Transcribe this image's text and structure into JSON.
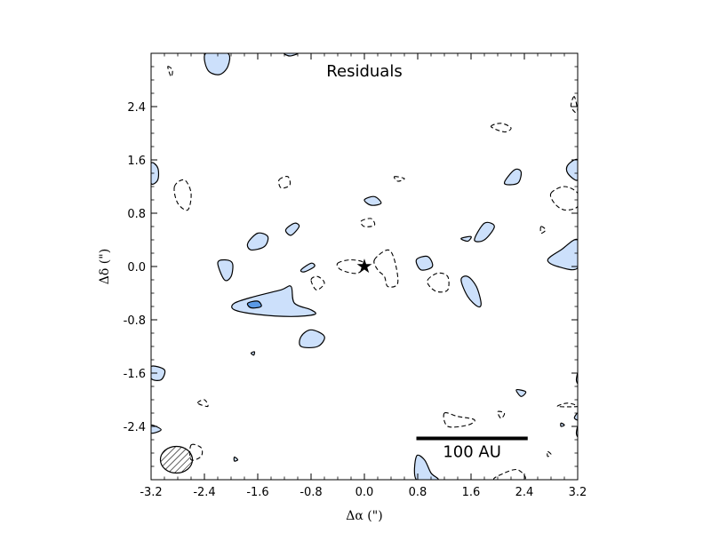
{
  "chart_data": {
    "type": "contour",
    "title": "Residuals",
    "xlabel": "Δα (\")",
    "ylabel": "Δδ (\")",
    "xlim": [
      -3.2,
      3.2
    ],
    "ylim": [
      -3.2,
      3.2
    ],
    "x_reversed": false,
    "xticks": [
      -3.2,
      -2.4,
      -1.6,
      -0.8,
      0.0,
      0.8,
      1.6,
      2.4,
      3.2
    ],
    "xtick_labels": [
      "-3.2",
      "-2.4",
      "-1.6",
      "-0.8",
      "0.0",
      "0.8",
      "1.6",
      "2.4",
      "3.2"
    ],
    "yticks": [
      -2.4,
      -1.6,
      -0.8,
      0.0,
      0.8,
      1.6,
      2.4
    ],
    "ytick_labels": [
      "-2.4",
      "-1.6",
      "-0.8",
      "0.0",
      "0.8",
      "1.6",
      "2.4"
    ],
    "colors": {
      "positive_fill": "#cce0fb",
      "strong_fill": "#5b9ae6",
      "line": "#000000"
    },
    "star": {
      "x": 0.0,
      "y": 0.0,
      "label": "★"
    },
    "scale_bar": {
      "x_start": 0.78,
      "x_end": 2.45,
      "y": -2.58,
      "label": "100 AU"
    },
    "beam": {
      "x": -2.82,
      "y": -2.9,
      "rx": 0.24,
      "ry": 0.2,
      "hatched": true
    },
    "positive_contours": [
      {
        "name": "pos-blob-1",
        "points": [
          [
            -2.38,
            3.2
          ],
          [
            -2.35,
            2.95
          ],
          [
            -2.18,
            2.88
          ],
          [
            -2.05,
            3.0
          ],
          [
            -2.05,
            3.2
          ]
        ]
      },
      {
        "name": "pos-blob-2",
        "points": [
          [
            -1.2,
            3.2
          ],
          [
            -1.12,
            3.16
          ],
          [
            -1.0,
            3.2
          ]
        ]
      },
      {
        "name": "pos-blob-3",
        "points": [
          [
            -3.2,
            1.55
          ],
          [
            -3.1,
            1.48
          ],
          [
            -3.1,
            1.3
          ],
          [
            -3.2,
            1.25
          ]
        ]
      },
      {
        "name": "pos-blob-4",
        "points": [
          [
            -2.2,
            0.05
          ],
          [
            -2.1,
            -0.2
          ],
          [
            -2.0,
            -0.15
          ],
          [
            -1.98,
            0.05
          ],
          [
            -2.1,
            0.1
          ]
        ]
      },
      {
        "name": "pos-blob-5",
        "points": [
          [
            -1.75,
            0.35
          ],
          [
            -1.6,
            0.5
          ],
          [
            -1.45,
            0.45
          ],
          [
            -1.5,
            0.3
          ],
          [
            -1.7,
            0.25
          ]
        ]
      },
      {
        "name": "pos-blob-6",
        "points": [
          [
            -1.18,
            0.55
          ],
          [
            -1.05,
            0.65
          ],
          [
            -0.98,
            0.6
          ],
          [
            -1.1,
            0.47
          ]
        ]
      },
      {
        "name": "pos-blob-7",
        "points": [
          [
            -0.95,
            -0.05
          ],
          [
            -0.8,
            0.05
          ],
          [
            -0.75,
            0.0
          ],
          [
            -0.9,
            -0.08
          ]
        ]
      },
      {
        "name": "pos-blob-8",
        "points": [
          [
            -1.95,
            -0.55
          ],
          [
            -1.65,
            -0.45
          ],
          [
            -1.25,
            -0.35
          ],
          [
            -1.1,
            -0.3
          ],
          [
            -1.05,
            -0.55
          ],
          [
            -0.8,
            -0.65
          ],
          [
            -0.75,
            -0.72
          ],
          [
            -1.1,
            -0.75
          ],
          [
            -1.6,
            -0.72
          ],
          [
            -1.95,
            -0.65
          ]
        ]
      },
      {
        "name": "pos-blob-9",
        "points": [
          [
            -0.95,
            -1.05
          ],
          [
            -0.8,
            -0.95
          ],
          [
            -0.6,
            -1.05
          ],
          [
            -0.7,
            -1.2
          ],
          [
            -0.95,
            -1.2
          ]
        ]
      },
      {
        "name": "pos-blob-10",
        "points": [
          [
            -1.7,
            -1.3
          ],
          [
            -1.65,
            -1.28
          ],
          [
            -1.66,
            -1.33
          ]
        ]
      },
      {
        "name": "pos-blob-11",
        "points": [
          [
            0.0,
            1.0
          ],
          [
            0.15,
            1.05
          ],
          [
            0.25,
            0.95
          ],
          [
            0.1,
            0.92
          ]
        ]
      },
      {
        "name": "pos-blob-12",
        "points": [
          [
            0.78,
            0.1
          ],
          [
            0.95,
            0.15
          ],
          [
            1.02,
            0.0
          ],
          [
            0.85,
            -0.05
          ]
        ]
      },
      {
        "name": "pos-blob-13",
        "points": [
          [
            1.45,
            -0.2
          ],
          [
            1.55,
            -0.15
          ],
          [
            1.68,
            -0.3
          ],
          [
            1.75,
            -0.55
          ],
          [
            1.7,
            -0.6
          ],
          [
            1.55,
            -0.45
          ]
        ]
      },
      {
        "name": "pos-blob-14",
        "points": [
          [
            1.45,
            0.42
          ],
          [
            1.6,
            0.45
          ],
          [
            1.55,
            0.38
          ]
        ]
      },
      {
        "name": "pos-blob-15",
        "points": [
          [
            1.65,
            0.4
          ],
          [
            1.8,
            0.65
          ],
          [
            1.95,
            0.6
          ],
          [
            1.8,
            0.4
          ]
        ]
      },
      {
        "name": "pos-blob-16",
        "points": [
          [
            2.1,
            1.25
          ],
          [
            2.25,
            1.45
          ],
          [
            2.35,
            1.42
          ],
          [
            2.3,
            1.25
          ]
        ]
      },
      {
        "name": "pos-blob-17",
        "points": [
          [
            3.2,
            1.6
          ],
          [
            3.05,
            1.52
          ],
          [
            3.05,
            1.4
          ],
          [
            3.2,
            1.3
          ]
        ]
      },
      {
        "name": "pos-blob-18",
        "points": [
          [
            2.75,
            0.1
          ],
          [
            2.95,
            0.25
          ],
          [
            3.2,
            0.4
          ],
          [
            3.2,
            -0.02
          ],
          [
            2.9,
            0.0
          ]
        ]
      },
      {
        "name": "pos-blob-19",
        "points": [
          [
            -3.2,
            -1.5
          ],
          [
            -3.0,
            -1.55
          ],
          [
            -3.05,
            -1.7
          ],
          [
            -3.2,
            -1.68
          ]
        ]
      },
      {
        "name": "pos-blob-20",
        "points": [
          [
            -3.2,
            -2.38
          ],
          [
            -3.05,
            -2.45
          ],
          [
            -3.2,
            -2.5
          ]
        ]
      },
      {
        "name": "pos-blob-21",
        "points": [
          [
            -1.95,
            -2.86
          ],
          [
            -1.9,
            -2.9
          ],
          [
            -1.95,
            -2.92
          ]
        ]
      },
      {
        "name": "pos-blob-22",
        "points": [
          [
            0.78,
            -2.85
          ],
          [
            0.9,
            -2.9
          ],
          [
            1.0,
            -3.1
          ],
          [
            1.1,
            -3.2
          ],
          [
            0.78,
            -3.2
          ]
        ]
      },
      {
        "name": "pos-blob-23",
        "points": [
          [
            2.28,
            -1.85
          ],
          [
            2.42,
            -1.88
          ],
          [
            2.35,
            -1.95
          ]
        ]
      },
      {
        "name": "pos-blob-24",
        "points": [
          [
            3.2,
            -1.6
          ],
          [
            3.18,
            -1.7
          ],
          [
            3.2,
            -1.75
          ]
        ]
      },
      {
        "name": "pos-blob-25",
        "points": [
          [
            3.2,
            -2.2
          ],
          [
            3.15,
            -2.27
          ],
          [
            3.2,
            -2.3
          ]
        ]
      },
      {
        "name": "pos-blob-26",
        "points": [
          [
            2.95,
            -2.35
          ],
          [
            3.0,
            -2.38
          ],
          [
            2.95,
            -2.4
          ]
        ]
      },
      {
        "name": "pos-blob-27",
        "points": [
          [
            3.2,
            -2.4
          ],
          [
            3.18,
            -2.5
          ],
          [
            3.2,
            -2.55
          ]
        ]
      }
    ],
    "strong_contours": [
      {
        "name": "strong-blob-1",
        "points": [
          [
            -1.75,
            -0.55
          ],
          [
            -1.6,
            -0.52
          ],
          [
            -1.55,
            -0.6
          ],
          [
            -1.7,
            -0.62
          ]
        ]
      }
    ],
    "negative_contours": [
      {
        "name": "neg-contour-1",
        "points": [
          [
            -2.95,
            3.0
          ],
          [
            -2.88,
            2.95
          ],
          [
            -2.9,
            2.85
          ]
        ]
      },
      {
        "name": "neg-contour-2",
        "points": [
          [
            -2.85,
            1.2
          ],
          [
            -2.7,
            1.3
          ],
          [
            -2.6,
            1.1
          ],
          [
            -2.65,
            0.85
          ],
          [
            -2.8,
            0.95
          ]
        ]
      },
      {
        "name": "neg-contour-3",
        "points": [
          [
            -1.28,
            1.3
          ],
          [
            -1.15,
            1.35
          ],
          [
            -1.12,
            1.22
          ],
          [
            -1.25,
            1.18
          ]
        ]
      },
      {
        "name": "neg-contour-4",
        "points": [
          [
            -0.4,
            0.05
          ],
          [
            -0.2,
            0.1
          ],
          [
            0.0,
            0.05
          ],
          [
            -0.1,
            -0.1
          ],
          [
            -0.35,
            -0.05
          ]
        ]
      },
      {
        "name": "neg-contour-5",
        "points": [
          [
            -0.8,
            -0.2
          ],
          [
            -0.7,
            -0.15
          ],
          [
            -0.6,
            -0.25
          ],
          [
            -0.72,
            -0.35
          ]
        ]
      },
      {
        "name": "neg-contour-6",
        "points": [
          [
            -0.05,
            0.68
          ],
          [
            0.1,
            0.72
          ],
          [
            0.15,
            0.62
          ],
          [
            0.0,
            0.6
          ]
        ]
      },
      {
        "name": "neg-contour-7",
        "points": [
          [
            0.15,
            0.1
          ],
          [
            0.35,
            0.25
          ],
          [
            0.45,
            0.1
          ],
          [
            0.5,
            -0.25
          ],
          [
            0.35,
            -0.3
          ],
          [
            0.3,
            -0.15
          ],
          [
            0.2,
            -0.05
          ]
        ]
      },
      {
        "name": "neg-contour-8",
        "points": [
          [
            0.45,
            1.35
          ],
          [
            0.6,
            1.32
          ],
          [
            0.5,
            1.28
          ]
        ]
      },
      {
        "name": "neg-contour-9",
        "points": [
          [
            0.95,
            -0.2
          ],
          [
            1.1,
            -0.1
          ],
          [
            1.25,
            -0.15
          ],
          [
            1.25,
            -0.35
          ],
          [
            1.1,
            -0.38
          ],
          [
            0.98,
            -0.3
          ]
        ]
      },
      {
        "name": "neg-contour-10",
        "points": [
          [
            1.9,
            2.1
          ],
          [
            2.05,
            2.15
          ],
          [
            2.2,
            2.08
          ],
          [
            2.1,
            2.02
          ]
        ]
      },
      {
        "name": "neg-contour-11",
        "points": [
          [
            2.65,
            0.6
          ],
          [
            2.72,
            0.55
          ],
          [
            2.65,
            0.5
          ]
        ]
      },
      {
        "name": "neg-contour-12",
        "points": [
          [
            2.8,
            1.1
          ],
          [
            3.0,
            1.2
          ],
          [
            3.2,
            1.1
          ],
          [
            3.2,
            0.9
          ],
          [
            3.0,
            0.85
          ],
          [
            2.85,
            0.95
          ]
        ]
      },
      {
        "name": "neg-contour-13",
        "points": [
          [
            3.15,
            2.55
          ],
          [
            3.1,
            2.4
          ],
          [
            3.2,
            2.3
          ]
        ]
      },
      {
        "name": "neg-contour-14",
        "points": [
          [
            -2.5,
            -2.05
          ],
          [
            -2.4,
            -2.0
          ],
          [
            -2.35,
            -2.1
          ]
        ]
      },
      {
        "name": "neg-contour-15",
        "points": [
          [
            -2.6,
            -2.68
          ],
          [
            -2.45,
            -2.72
          ],
          [
            -2.45,
            -2.85
          ],
          [
            -2.6,
            -2.9
          ]
        ]
      },
      {
        "name": "neg-contour-16",
        "points": [
          [
            1.2,
            -2.2
          ],
          [
            1.4,
            -2.25
          ],
          [
            1.65,
            -2.3
          ],
          [
            1.55,
            -2.38
          ],
          [
            1.25,
            -2.4
          ]
        ]
      },
      {
        "name": "neg-contour-17",
        "points": [
          [
            2.0,
            -2.18
          ],
          [
            2.1,
            -2.2
          ],
          [
            2.05,
            -2.28
          ]
        ]
      },
      {
        "name": "neg-contour-18",
        "points": [
          [
            2.9,
            -2.1
          ],
          [
            3.05,
            -2.05
          ],
          [
            3.2,
            -2.1
          ]
        ]
      },
      {
        "name": "neg-contour-19",
        "points": [
          [
            2.75,
            -2.78
          ],
          [
            2.8,
            -2.82
          ],
          [
            2.75,
            -2.85
          ]
        ]
      },
      {
        "name": "neg-contour-20",
        "points": [
          [
            1.95,
            -3.2
          ],
          [
            2.1,
            -3.1
          ],
          [
            2.3,
            -3.05
          ],
          [
            2.4,
            -3.2
          ]
        ]
      }
    ]
  }
}
